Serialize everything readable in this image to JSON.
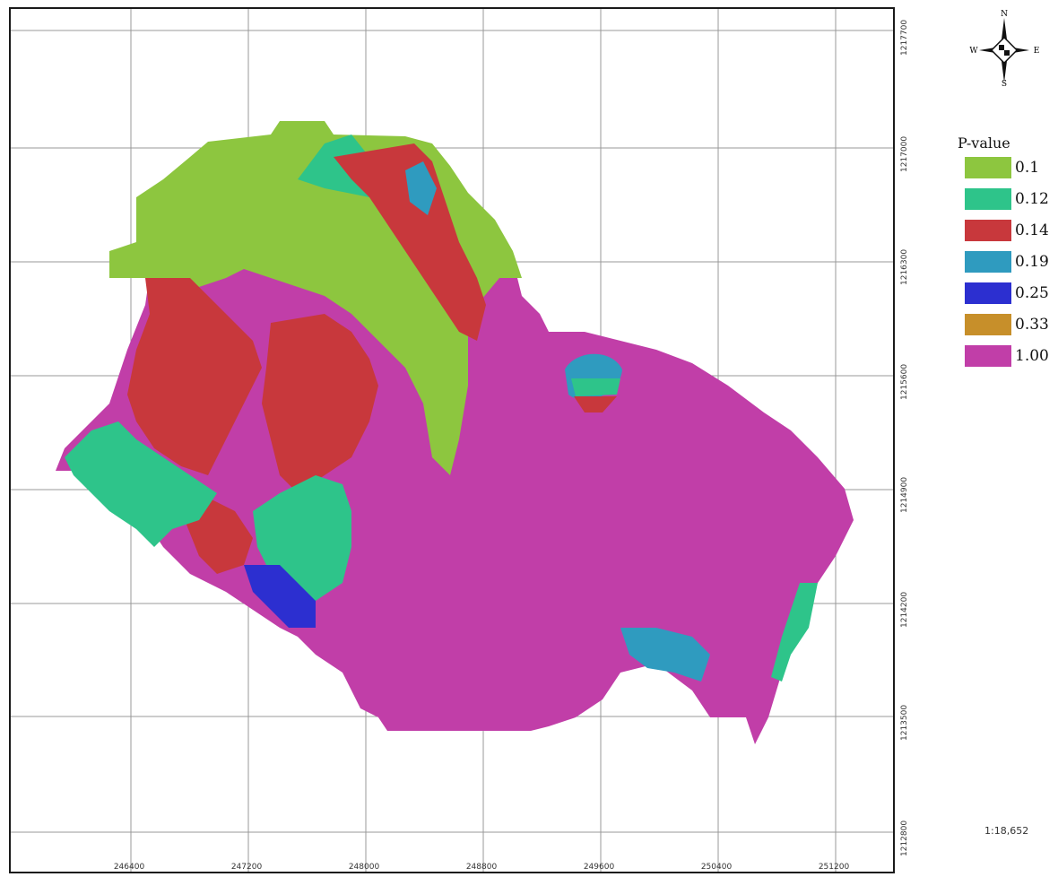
{
  "legend": {
    "title": "P-value",
    "items": [
      {
        "label": "0.1",
        "color": "#8dc63f"
      },
      {
        "label": "0.12",
        "color": "#2ec48a"
      },
      {
        "label": "0.14",
        "color": "#c8383c"
      },
      {
        "label": "0.19",
        "color": "#2f9bbf"
      },
      {
        "label": "0.25",
        "color": "#2c2fd0"
      },
      {
        "label": "0.33",
        "color": "#c78f2a"
      },
      {
        "label": "1.00",
        "color": "#c13ea8"
      }
    ]
  },
  "x_ticks": [
    "246400",
    "247200",
    "248000",
    "248800",
    "249600",
    "250400",
    "251200"
  ],
  "y_ticks": [
    "1217700",
    "1217000",
    "1216300",
    "1215600",
    "1214900",
    "1214200",
    "1213500",
    "1212800"
  ],
  "compass": {
    "n": "N",
    "s": "S",
    "e": "E",
    "w": "W"
  },
  "scale": "1:18,652",
  "icons": {
    "compass": "north-arrow-icon"
  }
}
